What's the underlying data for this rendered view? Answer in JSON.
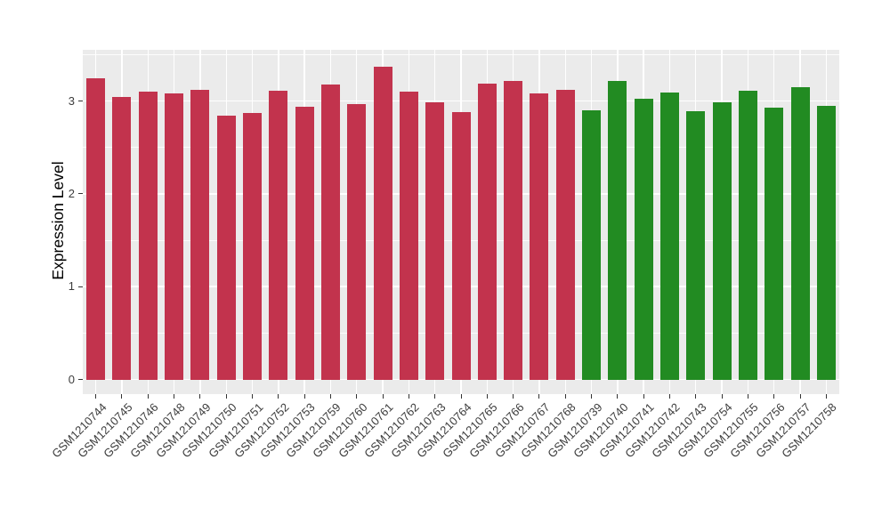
{
  "chart_data": {
    "type": "bar",
    "title": "",
    "xlabel": "",
    "ylabel": "Expression Level",
    "yticks": [
      0,
      1,
      2,
      3
    ],
    "ylim": [
      -0.18,
      3.55
    ],
    "grid": true,
    "legend": "none",
    "colors": {
      "panel_background": "#EBEBEB",
      "gridline": "#FFFFFF",
      "axis_text": "#3c3c3c",
      "axis_title": "#000000",
      "tick_mark": "#333333",
      "group_red": "#C2334D",
      "group_green": "#228B22"
    },
    "bars": [
      {
        "label": "GSM1210744",
        "value": 3.24,
        "color": "#C2334D"
      },
      {
        "label": "GSM1210745",
        "value": 3.04,
        "color": "#C2334D"
      },
      {
        "label": "GSM1210746",
        "value": 3.1,
        "color": "#C2334D"
      },
      {
        "label": "GSM1210748",
        "value": 3.08,
        "color": "#C2334D"
      },
      {
        "label": "GSM1210749",
        "value": 3.12,
        "color": "#C2334D"
      },
      {
        "label": "GSM1210750",
        "value": 2.84,
        "color": "#C2334D"
      },
      {
        "label": "GSM1210751",
        "value": 2.87,
        "color": "#C2334D"
      },
      {
        "label": "GSM1210752",
        "value": 3.11,
        "color": "#C2334D"
      },
      {
        "label": "GSM1210753",
        "value": 2.94,
        "color": "#C2334D"
      },
      {
        "label": "GSM1210759",
        "value": 3.18,
        "color": "#C2334D"
      },
      {
        "label": "GSM1210760",
        "value": 2.97,
        "color": "#C2334D"
      },
      {
        "label": "GSM1210761",
        "value": 3.37,
        "color": "#C2334D"
      },
      {
        "label": "GSM1210762",
        "value": 3.1,
        "color": "#C2334D"
      },
      {
        "label": "GSM1210763",
        "value": 2.99,
        "color": "#C2334D"
      },
      {
        "label": "GSM1210764",
        "value": 2.88,
        "color": "#C2334D"
      },
      {
        "label": "GSM1210765",
        "value": 3.19,
        "color": "#C2334D"
      },
      {
        "label": "GSM1210766",
        "value": 3.22,
        "color": "#C2334D"
      },
      {
        "label": "GSM1210767",
        "value": 3.08,
        "color": "#C2334D"
      },
      {
        "label": "GSM1210768",
        "value": 3.12,
        "color": "#C2334D"
      },
      {
        "label": "GSM1210739",
        "value": 2.9,
        "color": "#228B22"
      },
      {
        "label": "GSM1210740",
        "value": 3.22,
        "color": "#228B22"
      },
      {
        "label": "GSM1210741",
        "value": 3.02,
        "color": "#228B22"
      },
      {
        "label": "GSM1210742",
        "value": 3.09,
        "color": "#228B22"
      },
      {
        "label": "GSM1210743",
        "value": 2.89,
        "color": "#228B22"
      },
      {
        "label": "GSM1210754",
        "value": 2.99,
        "color": "#228B22"
      },
      {
        "label": "GSM1210755",
        "value": 3.11,
        "color": "#228B22"
      },
      {
        "label": "GSM1210756",
        "value": 2.93,
        "color": "#228B22"
      },
      {
        "label": "GSM1210757",
        "value": 3.15,
        "color": "#228B22"
      },
      {
        "label": "GSM1210758",
        "value": 2.95,
        "color": "#228B22"
      }
    ]
  }
}
